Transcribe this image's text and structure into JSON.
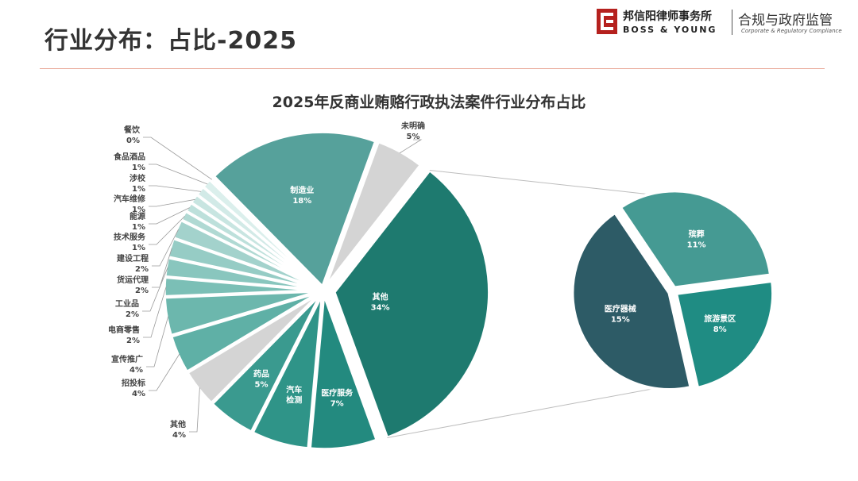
{
  "slide": {
    "title": "行业分布：占比-2025"
  },
  "logo": {
    "brand_cn": "邦信阳律师事务所",
    "brand_en": "BOSS & YOUNG",
    "practice_cn": "合规与政府监管",
    "practice_en": "Corporate & Regulatory Compliance"
  },
  "chart_data": {
    "type": "pie",
    "title": "2025年反商业贿赂行政执法案件行业分布占比",
    "slices": [
      {
        "name": "其他",
        "value": 34,
        "label": "34%",
        "color": "#1e7a6f"
      },
      {
        "name": "医疗服务",
        "value": 7,
        "label": "7%",
        "color": "#238a7f"
      },
      {
        "name": "汽车检测",
        "value": 6,
        "label": "",
        "color": "#2f9488"
      },
      {
        "name": "药品",
        "value": 5,
        "label": "5%",
        "color": "#3a9a8f"
      },
      {
        "name": "其他",
        "value": 4,
        "label": "4%",
        "color": "#d4d4d4"
      },
      {
        "name": "招投标",
        "value": 4,
        "label": "4%",
        "color": "#5fb0a6"
      },
      {
        "name": "宣传推广",
        "value": 4,
        "label": "4%",
        "color": "#6cb7ad"
      },
      {
        "name": "电商零售",
        "value": 2,
        "label": "2%",
        "color": "#7bbfb6"
      },
      {
        "name": "工业品",
        "value": 2,
        "label": "2%",
        "color": "#89c6be"
      },
      {
        "name": "货运代理",
        "value": 2,
        "label": "2%",
        "color": "#96ccc5"
      },
      {
        "name": "建设工程",
        "value": 2,
        "label": "2%",
        "color": "#a3d2cc"
      },
      {
        "name": "技术服务",
        "value": 1,
        "label": "1%",
        "color": "#b0d9d3"
      },
      {
        "name": "能源",
        "value": 1,
        "label": "1%",
        "color": "#bde0db"
      },
      {
        "name": "汽车维修",
        "value": 1,
        "label": "1%",
        "color": "#c8e5e1"
      },
      {
        "name": "涉校",
        "value": 1,
        "label": "1%",
        "color": "#d2eae7"
      },
      {
        "name": "食品酒品",
        "value": 1,
        "label": "1%",
        "color": "#dbefec"
      },
      {
        "name": "餐饮",
        "value": 0,
        "label": "0%",
        "color": "#e4f3f1"
      },
      {
        "name": "制造业",
        "value": 18,
        "label": "18%",
        "color": "#56a19b"
      },
      {
        "name": "未明确",
        "value": 5,
        "label": "5%",
        "color": "#d4d4d4"
      }
    ],
    "breakout": {
      "parent": "其他",
      "slices": [
        {
          "name": "殡葬",
          "value": 11,
          "label": "11%",
          "color": "#459a93"
        },
        {
          "name": "旅游景区",
          "value": 8,
          "label": "8%",
          "color": "#1f8c83"
        },
        {
          "name": "医疗器械",
          "value": 15,
          "label": "15%",
          "color": "#2d5b66"
        }
      ]
    }
  }
}
